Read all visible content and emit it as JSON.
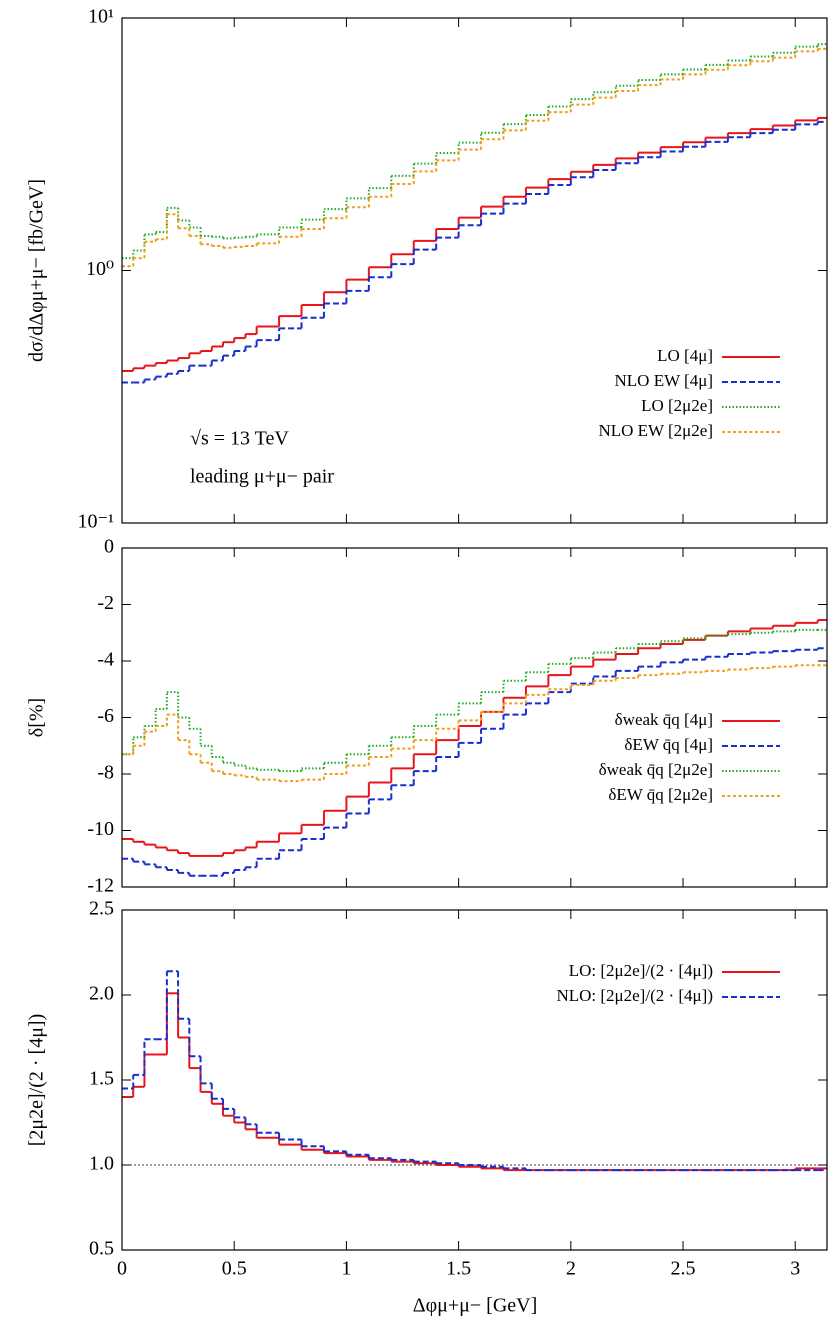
{
  "chart_data": [
    {
      "type": "histogram",
      "yscale": "log",
      "legend": "lower right",
      "ylabel": "dσ/dΔφμ+μ− [fb/GeV]",
      "annotations": [
        "√s = 13 TeV",
        "leading μ+μ− pair"
      ],
      "bins": [
        0,
        0.05,
        0.1,
        0.15,
        0.2,
        0.25,
        0.3,
        0.35,
        0.4,
        0.45,
        0.5,
        0.55,
        0.6,
        0.7,
        0.8,
        0.9,
        1.0,
        1.1,
        1.2,
        1.3,
        1.4,
        1.5,
        1.6,
        1.7,
        1.8,
        1.9,
        2.0,
        2.1,
        2.2,
        2.3,
        2.4,
        2.5,
        2.6,
        2.7,
        2.8,
        2.9,
        3.0,
        3.1,
        3.14159
      ],
      "xlim": [
        0,
        3.14159
      ],
      "ylim": [
        0.1,
        10
      ],
      "yticks": [
        {
          "value": 0.1,
          "label": "10⁻¹"
        },
        {
          "value": 1,
          "label": "10⁰"
        },
        {
          "value": 10,
          "label": "10¹"
        }
      ],
      "series": [
        {
          "name": "LO  [4μ]",
          "color": "#e8141c",
          "dash": "solid",
          "values": [
            0.4,
            0.41,
            0.42,
            0.43,
            0.44,
            0.45,
            0.47,
            0.48,
            0.5,
            0.52,
            0.54,
            0.56,
            0.6,
            0.66,
            0.73,
            0.82,
            0.92,
            1.03,
            1.16,
            1.31,
            1.46,
            1.62,
            1.79,
            1.96,
            2.13,
            2.3,
            2.46,
            2.62,
            2.78,
            2.93,
            3.08,
            3.22,
            3.36,
            3.5,
            3.63,
            3.75,
            3.93,
            4.02
          ]
        },
        {
          "name": "NLO EW  [4μ]",
          "color": "#1a2ecc",
          "dash": "dashed",
          "values": [
            0.36,
            0.36,
            0.37,
            0.38,
            0.39,
            0.4,
            0.42,
            0.42,
            0.44,
            0.46,
            0.48,
            0.5,
            0.53,
            0.59,
            0.65,
            0.74,
            0.83,
            0.94,
            1.06,
            1.21,
            1.35,
            1.51,
            1.68,
            1.84,
            2.01,
            2.18,
            2.34,
            2.5,
            2.66,
            2.81,
            2.96,
            3.09,
            3.23,
            3.37,
            3.5,
            3.61,
            3.79,
            3.88
          ]
        },
        {
          "name": "LO  [2μ2e]",
          "color": "#22aa22",
          "dash": "dotted",
          "values": [
            1.12,
            1.2,
            1.39,
            1.42,
            1.77,
            1.58,
            1.48,
            1.37,
            1.36,
            1.34,
            1.35,
            1.36,
            1.39,
            1.48,
            1.59,
            1.75,
            1.93,
            2.12,
            2.37,
            2.65,
            2.92,
            3.21,
            3.51,
            3.8,
            4.13,
            4.46,
            4.77,
            5.08,
            5.39,
            5.68,
            5.98,
            6.25,
            6.52,
            6.79,
            7.04,
            7.28,
            7.7,
            7.88
          ]
        },
        {
          "name": "NLO EW  [2μ2e]",
          "color": "#eea01c",
          "dash": "shortdash",
          "values": [
            1.04,
            1.12,
            1.3,
            1.33,
            1.67,
            1.47,
            1.37,
            1.27,
            1.25,
            1.23,
            1.24,
            1.25,
            1.28,
            1.36,
            1.46,
            1.61,
            1.78,
            1.96,
            2.2,
            2.47,
            2.73,
            3.01,
            3.31,
            3.59,
            3.92,
            4.24,
            4.54,
            4.84,
            5.14,
            5.42,
            5.71,
            5.98,
            6.24,
            6.5,
            6.74,
            6.97,
            7.38,
            7.55
          ]
        }
      ]
    },
    {
      "type": "histogram",
      "legend": "lower right",
      "ylabel": "δ[%]",
      "bins": [
        0,
        0.05,
        0.1,
        0.15,
        0.2,
        0.25,
        0.3,
        0.35,
        0.4,
        0.45,
        0.5,
        0.55,
        0.6,
        0.7,
        0.8,
        0.9,
        1.0,
        1.1,
        1.2,
        1.3,
        1.4,
        1.5,
        1.6,
        1.7,
        1.8,
        1.9,
        2.0,
        2.1,
        2.2,
        2.3,
        2.4,
        2.5,
        2.6,
        2.7,
        2.8,
        2.9,
        3.0,
        3.1,
        3.14159
      ],
      "xlim": [
        0,
        3.14159
      ],
      "ylim": [
        -12,
        0
      ],
      "yticks": [
        -12,
        -10,
        -8,
        -6,
        -4,
        -2,
        0
      ],
      "series": [
        {
          "name": "δweak q̄q [4μ]",
          "color": "#e8141c",
          "dash": "solid",
          "values": [
            -10.3,
            -10.4,
            -10.5,
            -10.6,
            -10.7,
            -10.8,
            -10.9,
            -10.9,
            -10.9,
            -10.8,
            -10.7,
            -10.6,
            -10.4,
            -10.1,
            -9.8,
            -9.3,
            -8.8,
            -8.3,
            -7.8,
            -7.3,
            -6.8,
            -6.3,
            -5.8,
            -5.3,
            -4.9,
            -4.5,
            -4.2,
            -3.95,
            -3.75,
            -3.55,
            -3.4,
            -3.25,
            -3.1,
            -2.95,
            -2.85,
            -2.75,
            -2.65,
            -2.55
          ]
        },
        {
          "name": "δEW q̄q [4μ]",
          "color": "#1a2ecc",
          "dash": "dashed",
          "values": [
            -11.0,
            -11.1,
            -11.2,
            -11.3,
            -11.4,
            -11.5,
            -11.6,
            -11.6,
            -11.6,
            -11.5,
            -11.4,
            -11.3,
            -11.0,
            -10.7,
            -10.3,
            -9.9,
            -9.4,
            -8.9,
            -8.4,
            -7.9,
            -7.4,
            -6.9,
            -6.4,
            -5.9,
            -5.5,
            -5.1,
            -4.8,
            -4.55,
            -4.35,
            -4.2,
            -4.05,
            -3.95,
            -3.85,
            -3.75,
            -3.7,
            -3.65,
            -3.6,
            -3.55
          ]
        },
        {
          "name": "δweak q̄q [2μ2e]",
          "color": "#22aa22",
          "dash": "dotted",
          "values": [
            -7.3,
            -6.7,
            -6.3,
            -5.7,
            -5.1,
            -6.0,
            -6.4,
            -7.0,
            -7.4,
            -7.6,
            -7.7,
            -7.8,
            -7.85,
            -7.9,
            -7.8,
            -7.6,
            -7.3,
            -7.0,
            -6.7,
            -6.3,
            -5.9,
            -5.5,
            -5.1,
            -4.7,
            -4.4,
            -4.1,
            -3.9,
            -3.7,
            -3.55,
            -3.4,
            -3.3,
            -3.2,
            -3.1,
            -3.05,
            -3.0,
            -2.95,
            -2.9,
            -2.9
          ]
        },
        {
          "name": "δEW q̄q [2μ2e]",
          "color": "#eea01c",
          "dash": "shortdash",
          "values": [
            -7.3,
            -7.0,
            -6.5,
            -6.3,
            -5.9,
            -6.8,
            -7.3,
            -7.6,
            -7.9,
            -8.0,
            -8.05,
            -8.1,
            -8.2,
            -8.25,
            -8.2,
            -8.0,
            -7.7,
            -7.4,
            -7.1,
            -6.8,
            -6.4,
            -6.1,
            -5.8,
            -5.5,
            -5.2,
            -5.0,
            -4.85,
            -4.7,
            -4.6,
            -4.5,
            -4.45,
            -4.4,
            -4.35,
            -4.3,
            -4.25,
            -4.2,
            -4.15,
            -4.15
          ]
        }
      ]
    },
    {
      "type": "histogram",
      "legend": "upper right",
      "ylabel": "[2μ2e]/(2 · [4μ])",
      "xlabel": "Δφμ+μ− [GeV]",
      "bins": [
        0,
        0.05,
        0.1,
        0.15,
        0.2,
        0.25,
        0.3,
        0.35,
        0.4,
        0.45,
        0.5,
        0.55,
        0.6,
        0.7,
        0.8,
        0.9,
        1.0,
        1.1,
        1.2,
        1.3,
        1.4,
        1.5,
        1.6,
        1.7,
        1.8,
        1.9,
        2.0,
        2.1,
        2.2,
        2.3,
        2.4,
        2.5,
        2.6,
        2.7,
        2.8,
        2.9,
        3.0,
        3.1,
        3.14159
      ],
      "xlim": [
        0,
        3.14159
      ],
      "ylim": [
        0.5,
        2.5
      ],
      "xticks": [
        0,
        0.5,
        1,
        1.5,
        2,
        2.5,
        3
      ],
      "yticks": [
        0.5,
        {
          "value": 1,
          "label": "1.0"
        },
        1.5,
        {
          "value": 2,
          "label": "2.0"
        },
        2.5
      ],
      "hline": 1,
      "series": [
        {
          "name": "LO: [2μ2e]/(2 · [4μ])",
          "color": "#e8141c",
          "dash": "solid",
          "values": [
            1.4,
            1.46,
            1.65,
            1.65,
            2.01,
            1.75,
            1.57,
            1.43,
            1.36,
            1.29,
            1.25,
            1.21,
            1.16,
            1.12,
            1.09,
            1.07,
            1.05,
            1.03,
            1.02,
            1.01,
            1.0,
            0.99,
            0.98,
            0.97,
            0.97,
            0.97,
            0.97,
            0.97,
            0.97,
            0.97,
            0.97,
            0.97,
            0.97,
            0.97,
            0.97,
            0.97,
            0.98,
            0.98
          ]
        },
        {
          "name": "NLO: [2μ2e]/(2 · [4μ])",
          "color": "#1a2ecc",
          "dash": "dashed",
          "values": [
            1.45,
            1.53,
            1.74,
            1.74,
            2.14,
            1.86,
            1.64,
            1.48,
            1.39,
            1.33,
            1.28,
            1.24,
            1.19,
            1.15,
            1.11,
            1.08,
            1.06,
            1.04,
            1.03,
            1.02,
            1.01,
            1.0,
            0.99,
            0.98,
            0.97,
            0.97,
            0.97,
            0.97,
            0.97,
            0.97,
            0.97,
            0.97,
            0.97,
            0.97,
            0.97,
            0.97,
            0.97,
            0.97
          ]
        }
      ]
    }
  ]
}
